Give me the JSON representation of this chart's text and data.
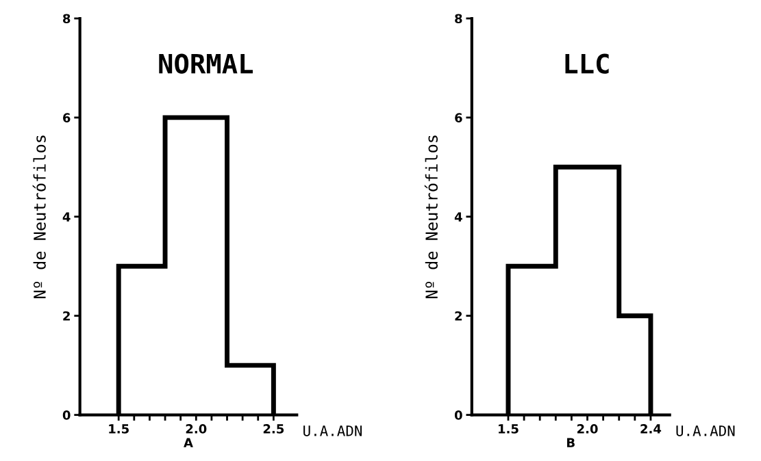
{
  "chart_data": [
    {
      "type": "histogram",
      "title": "NORMAL",
      "xlabel": "A",
      "ylabel": "Nº de Neutrófilos",
      "annotations": [
        "U.A.ADN"
      ],
      "bins": [
        1.5,
        1.8,
        2.2,
        2.5
      ],
      "values": [
        3,
        6,
        1
      ],
      "color": "#000000",
      "xlim": [
        1.25,
        2.65
      ],
      "ylim": [
        0,
        8
      ],
      "yticks": [
        0,
        2,
        4,
        6,
        8
      ],
      "xticks": [
        1.5,
        {
          "value": 1.6,
          "label": null
        },
        {
          "value": 1.7,
          "label": null
        },
        {
          "value": 1.8,
          "label": null
        },
        {
          "value": 1.9,
          "label": null
        },
        {
          "value": 2.0,
          "label": "2.0"
        },
        {
          "value": 2.1,
          "label": null
        },
        {
          "value": 2.2,
          "label": null
        },
        {
          "value": 2.3,
          "label": null
        },
        {
          "value": 2.4,
          "label": null
        },
        2.5
      ],
      "grid": false
    },
    {
      "type": "histogram",
      "title": "LLC",
      "xlabel": "B",
      "ylabel": "Nº de Neutrófilos",
      "annotations": [
        "U.A.ADN"
      ],
      "bins": [
        1.5,
        1.8,
        2.2,
        2.4
      ],
      "values": [
        3,
        5,
        2
      ],
      "color": "#000000",
      "xlim": [
        1.27,
        2.52
      ],
      "ylim": [
        0,
        8
      ],
      "yticks": [
        0,
        2,
        4,
        6,
        8
      ],
      "xticks": [
        1.5,
        {
          "value": 1.6,
          "label": null
        },
        {
          "value": 1.7,
          "label": null
        },
        {
          "value": 1.8,
          "label": null
        },
        {
          "value": 1.9,
          "label": null
        },
        {
          "value": 2.0,
          "label": "2.0"
        },
        {
          "value": 2.1,
          "label": null
        },
        {
          "value": 2.2,
          "label": null
        },
        {
          "value": 2.3,
          "label": null
        },
        2.4
      ],
      "grid": false
    }
  ]
}
